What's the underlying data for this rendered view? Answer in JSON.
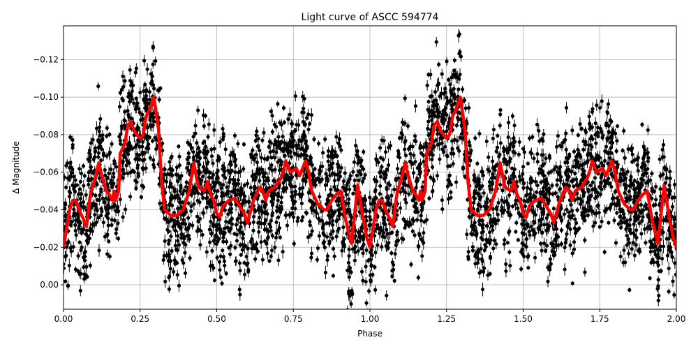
{
  "chart_data": {
    "type": "scatter",
    "title": "Light curve of ASCC 594774",
    "xlabel": "Phase",
    "ylabel": "Δ Magnitude",
    "xlim": [
      0,
      2
    ],
    "ylim": [
      0.013,
      -0.138
    ],
    "y_inverted": true,
    "grid": true,
    "xticks": [
      "0.00",
      "0.25",
      "0.50",
      "0.75",
      "1.00",
      "1.25",
      "1.50",
      "1.75",
      "2.00"
    ],
    "xtick_values": [
      0,
      0.25,
      0.5,
      0.75,
      1,
      1.25,
      1.5,
      1.75,
      2
    ],
    "yticks": [
      "−0.12",
      "−0.10",
      "−0.08",
      "−0.06",
      "−0.04",
      "−0.02",
      "0.00"
    ],
    "ytick_values": [
      -0.12,
      -0.1,
      -0.08,
      -0.06,
      -0.04,
      -0.02,
      0.0
    ],
    "colors": {
      "observations": "#000000",
      "model": "#ff0000"
    },
    "series": [
      {
        "kind": "scatter-errorbar",
        "color": "#000000",
        "description_visible": false
      },
      {
        "kind": "line",
        "color": "#ff0000",
        "x": [
          0,
          0.02,
          0.03,
          0.04,
          0.05,
          0.065,
          0.075,
          0.085,
          0.09,
          0.1,
          0.115,
          0.125,
          0.14,
          0.15,
          0.16,
          0.165,
          0.17,
          0.18,
          0.185,
          0.2,
          0.21,
          0.22,
          0.23,
          0.25,
          0.26,
          0.27,
          0.28,
          0.295,
          0.31,
          0.32,
          0.33,
          0.35,
          0.37,
          0.39,
          0.4,
          0.41,
          0.425,
          0.44,
          0.46,
          0.47,
          0.48,
          0.49,
          0.5,
          0.51,
          0.52,
          0.54,
          0.56,
          0.575,
          0.59,
          0.6,
          0.62,
          0.64,
          0.65,
          0.66,
          0.67,
          0.69,
          0.71,
          0.72,
          0.725,
          0.74,
          0.76,
          0.77,
          0.78,
          0.79,
          0.8,
          0.81,
          0.83,
          0.85,
          0.86,
          0.875,
          0.89,
          0.905,
          0.92,
          0.94,
          0.955,
          0.96,
          0.975,
          0.99,
          1.0,
          1.02,
          1.03,
          1.04,
          1.05,
          1.065,
          1.075,
          1.085,
          1.09,
          1.1,
          1.115,
          1.125,
          1.14,
          1.15,
          1.16,
          1.165,
          1.17,
          1.18,
          1.185,
          1.2,
          1.21,
          1.22,
          1.23,
          1.25,
          1.26,
          1.27,
          1.28,
          1.295,
          1.31,
          1.32,
          1.33,
          1.35,
          1.37,
          1.39,
          1.4,
          1.41,
          1.425,
          1.44,
          1.46,
          1.47,
          1.48,
          1.49,
          1.5,
          1.51,
          1.52,
          1.54,
          1.56,
          1.575,
          1.59,
          1.6,
          1.62,
          1.64,
          1.65,
          1.66,
          1.67,
          1.69,
          1.71,
          1.72,
          1.725,
          1.74,
          1.76,
          1.77,
          1.78,
          1.79,
          1.8,
          1.81,
          1.83,
          1.85,
          1.86,
          1.875,
          1.89,
          1.905,
          1.92,
          1.94,
          1.955,
          1.96,
          1.975,
          1.99,
          2.0
        ],
        "y": [
          -0.02,
          -0.04,
          -0.045,
          -0.045,
          -0.04,
          -0.035,
          -0.031,
          -0.045,
          -0.05,
          -0.055,
          -0.065,
          -0.058,
          -0.05,
          -0.048,
          -0.045,
          -0.05,
          -0.045,
          -0.05,
          -0.07,
          -0.075,
          -0.085,
          -0.087,
          -0.082,
          -0.078,
          -0.08,
          -0.09,
          -0.093,
          -0.1,
          -0.083,
          -0.055,
          -0.04,
          -0.037,
          -0.037,
          -0.04,
          -0.045,
          -0.05,
          -0.065,
          -0.052,
          -0.05,
          -0.055,
          -0.048,
          -0.045,
          -0.038,
          -0.036,
          -0.042,
          -0.045,
          -0.046,
          -0.042,
          -0.038,
          -0.033,
          -0.045,
          -0.052,
          -0.05,
          -0.045,
          -0.05,
          -0.052,
          -0.057,
          -0.062,
          -0.066,
          -0.06,
          -0.062,
          -0.058,
          -0.062,
          -0.066,
          -0.06,
          -0.05,
          -0.043,
          -0.04,
          -0.04,
          -0.045,
          -0.048,
          -0.05,
          -0.035,
          -0.022,
          -0.045,
          -0.053,
          -0.038,
          -0.025,
          -0.02,
          -0.04,
          -0.045,
          -0.045,
          -0.04,
          -0.035,
          -0.031,
          -0.045,
          -0.05,
          -0.055,
          -0.065,
          -0.058,
          -0.05,
          -0.048,
          -0.045,
          -0.05,
          -0.045,
          -0.05,
          -0.07,
          -0.075,
          -0.085,
          -0.087,
          -0.082,
          -0.078,
          -0.08,
          -0.09,
          -0.093,
          -0.1,
          -0.083,
          -0.055,
          -0.04,
          -0.037,
          -0.037,
          -0.04,
          -0.045,
          -0.05,
          -0.065,
          -0.052,
          -0.05,
          -0.055,
          -0.048,
          -0.045,
          -0.038,
          -0.036,
          -0.042,
          -0.045,
          -0.046,
          -0.042,
          -0.038,
          -0.033,
          -0.045,
          -0.052,
          -0.05,
          -0.045,
          -0.05,
          -0.052,
          -0.057,
          -0.062,
          -0.066,
          -0.06,
          -0.062,
          -0.058,
          -0.062,
          -0.066,
          -0.06,
          -0.05,
          -0.043,
          -0.04,
          -0.04,
          -0.045,
          -0.048,
          -0.05,
          -0.035,
          -0.022,
          -0.045,
          -0.053,
          -0.038,
          -0.025,
          -0.02
        ]
      }
    ]
  }
}
